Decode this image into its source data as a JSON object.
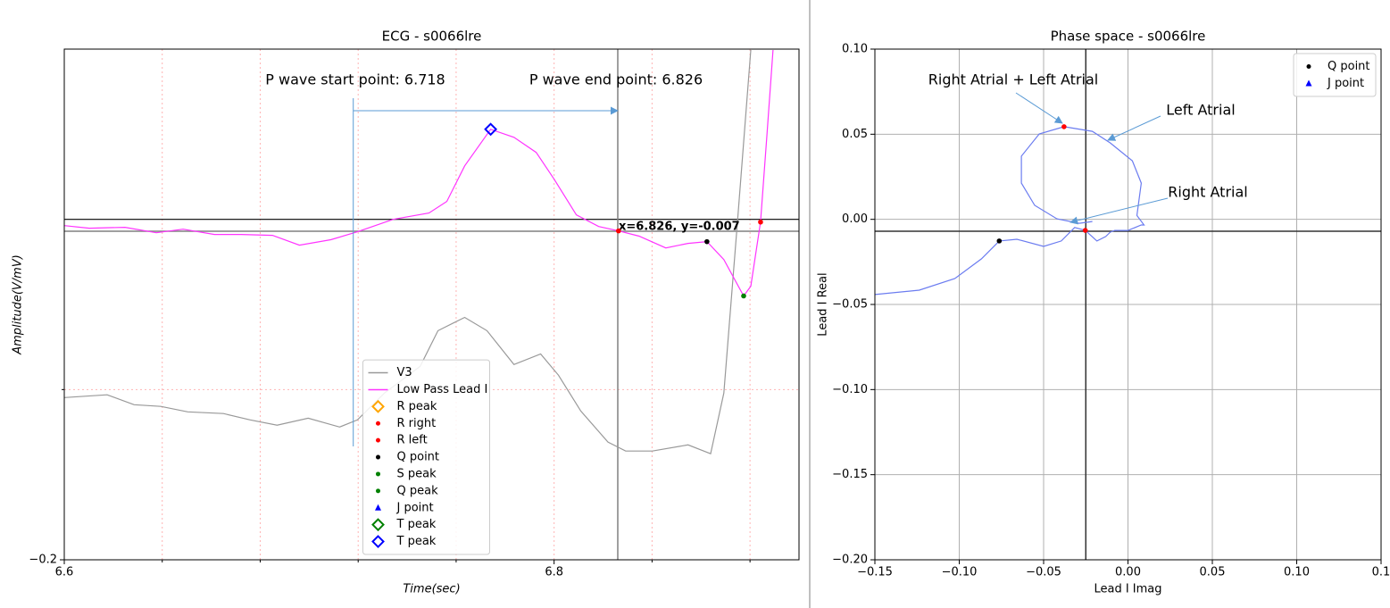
{
  "chart_data": [
    {
      "type": "line",
      "title": "ECG - s0066lre",
      "xlabel": "Time(sec)",
      "ylabel": "Amplitude(V/mV)",
      "xlim": [
        6.6,
        6.9
      ],
      "ylim": [
        -0.2,
        0.1
      ],
      "xticks": [
        6.6,
        6.8
      ],
      "yticks": [
        {
          "value": -0.2,
          "label": "−0.2"
        }
      ],
      "minor_xticks": [
        6.64,
        6.68,
        6.72,
        6.76,
        6.84,
        6.88
      ],
      "minor_yticks": [
        -0.1
      ],
      "grid": true,
      "grid_color": "#ffb3b3",
      "grid_dash": "2,3",
      "hlines": [
        0
      ],
      "crosshair": {
        "x": 6.826,
        "y": -0.007,
        "label": "x=6.826, y=-0.007",
        "color": "#808080"
      },
      "annotations": [
        {
          "text": "P wave start point: 6.718",
          "x": 6.718
        },
        {
          "text": "P wave end point: 6.826",
          "x": 6.826
        }
      ],
      "arrow_color": "#5b9bd5",
      "legend": "lower center",
      "series": [
        {
          "name": "V3",
          "color": "#999999",
          "marker": "line",
          "x": [
            6.6,
            6.6175,
            6.6285,
            6.6394,
            6.6504,
            6.665,
            6.6759,
            6.6869,
            6.6996,
            6.7124,
            6.7197,
            6.7307,
            6.7453,
            6.7526,
            6.7635,
            6.7726,
            6.7836,
            6.7945,
            6.8018,
            6.8109,
            6.822,
            6.8292,
            6.8401,
            6.8547,
            6.8639,
            6.8693,
            6.8748,
            6.8803
          ],
          "values": [
            -0.1047,
            -0.1031,
            -0.1089,
            -0.1099,
            -0.1131,
            -0.1141,
            -0.1178,
            -0.1209,
            -0.1168,
            -0.122,
            -0.1178,
            -0.1021,
            -0.0864,
            -0.0654,
            -0.0576,
            -0.0654,
            -0.0853,
            -0.0791,
            -0.0916,
            -0.1126,
            -0.1309,
            -0.1361,
            -0.1361,
            -0.1325,
            -0.1377,
            -0.1021,
            -0.0026,
            0.0995
          ]
        },
        {
          "name": "Low Pass Lead I",
          "color": "#ff33ff",
          "marker": "line",
          "x": [
            6.6,
            6.6102,
            6.6248,
            6.6376,
            6.6485,
            6.6613,
            6.6723,
            6.685,
            6.696,
            6.7088,
            6.7197,
            6.7343,
            6.7489,
            6.7562,
            6.7635,
            6.7741,
            6.7836,
            6.7927,
            6.8,
            6.8091,
            6.8182,
            6.8263,
            6.8347,
            6.8456,
            6.8547,
            6.8624,
            6.8693,
            6.8774,
            6.8803,
            6.8843,
            6.8869,
            6.8894
          ],
          "values": [
            -0.0037,
            -0.0052,
            -0.0047,
            -0.0079,
            -0.0058,
            -0.0089,
            -0.0089,
            -0.0094,
            -0.0152,
            -0.012,
            -0.0073,
            0,
            0.0037,
            0.0105,
            0.0314,
            0.0529,
            0.0482,
            0.0393,
            0.0236,
            0.0026,
            -0.0042,
            -0.0068,
            -0.0099,
            -0.0168,
            -0.0141,
            -0.0131,
            -0.0236,
            -0.045,
            -0.0393,
            -0.0016,
            0.0497,
            0.0995
          ]
        },
        {
          "name": "R peak",
          "color": "#ffa500",
          "marker": "diamond",
          "x": [],
          "values": []
        },
        {
          "name": "R right",
          "color": "#ff0000",
          "marker": "dot",
          "x": [
            6.8843
          ],
          "values": [
            -0.0016
          ]
        },
        {
          "name": "R left",
          "color": "#ff0000",
          "marker": "dot",
          "x": [
            6.8263
          ],
          "values": [
            -0.0068
          ]
        },
        {
          "name": "Q point",
          "color": "#000000",
          "marker": "dot",
          "x": [
            6.8624
          ],
          "values": [
            -0.0131
          ]
        },
        {
          "name": "S peak",
          "color": "#008000",
          "marker": "dot",
          "x": [
            6.8774
          ],
          "values": [
            -0.045
          ]
        },
        {
          "name": "Q peak",
          "color": "#008000",
          "marker": "dot",
          "x": [],
          "values": []
        },
        {
          "name": "J point",
          "color": "#0000ff",
          "marker": "triangle",
          "x": [],
          "values": []
        },
        {
          "name": "T peak",
          "color": "#008000",
          "marker": "diamond",
          "x": [],
          "values": []
        },
        {
          "name": "T peak",
          "color": "#0000ff",
          "marker": "diamond",
          "x": [
            6.7741
          ],
          "values": [
            0.0529
          ]
        }
      ]
    },
    {
      "type": "line",
      "title": "Phase space - s0066lre",
      "xlabel": "Lead I Imag",
      "ylabel": "Lead I Real",
      "xlim": [
        -0.15,
        0.15
      ],
      "ylim": [
        -0.2,
        0.1
      ],
      "xticks": [
        {
          "value": -0.15,
          "label": "−0.15"
        },
        {
          "value": -0.1,
          "label": "−0.10"
        },
        {
          "value": -0.05,
          "label": "−0.05"
        },
        {
          "value": 0,
          "label": "0.00"
        },
        {
          "value": 0.05,
          "label": "0.05"
        },
        {
          "value": 0.1,
          "label": "0.10"
        },
        {
          "value": 0.15,
          "label": "0.1"
        }
      ],
      "yticks": [
        {
          "value": 0.1,
          "label": "0.10"
        },
        {
          "value": 0.05,
          "label": "0.05"
        },
        {
          "value": 0,
          "label": "0.00"
        },
        {
          "value": -0.05,
          "label": "−0.05"
        },
        {
          "value": -0.1,
          "label": "−0.10"
        },
        {
          "value": -0.15,
          "label": "−0.15"
        },
        {
          "value": -0.2,
          "label": "−0.20"
        }
      ],
      "grid": true,
      "grid_color": "#b0b0b0",
      "crosshair": {
        "x": -0.025,
        "y": -0.007,
        "color": "#333333"
      },
      "annotations": [
        {
          "text": "Right Atrial  + Left Atrial"
        },
        {
          "text": "Left Atrial"
        },
        {
          "text": "Right Atrial"
        }
      ],
      "arrow_color": "#5b9bd5",
      "legend": "upper right",
      "series": [
        {
          "color": "#6b7cf0",
          "marker": "line",
          "x": [
            -0.15,
            -0.1237,
            -0.1026,
            -0.0868,
            -0.0763,
            -0.0658,
            -0.05,
            -0.0395,
            -0.0316,
            -0.0253,
            -0.0184,
            -0.0132,
            -0.0105,
            -0.0079,
            0,
            0.0079,
            0.0095,
            0.0053,
            0.0079,
            0.0026,
            -0.0105,
            -0.0211,
            -0.0379,
            -0.0526,
            -0.0632,
            -0.0632,
            -0.0553,
            -0.0421,
            -0.0289,
            -0.0211
          ],
          "values": [
            -0.0442,
            -0.0416,
            -0.0348,
            -0.0232,
            -0.0127,
            -0.0117,
            -0.0159,
            -0.0127,
            -0.0048,
            -0.0065,
            -0.0127,
            -0.0101,
            -0.0075,
            -0.0065,
            -0.0065,
            -0.0033,
            -0.0033,
            0.0023,
            0.0213,
            0.0344,
            0.0449,
            0.0517,
            0.0544,
            0.0502,
            0.0371,
            0.0213,
            0.0082,
            0.0003,
            -0.0023,
            -0.0013
          ]
        },
        {
          "color": "#ff0000",
          "marker": "dot",
          "x": [
            -0.0379,
            -0.0253
          ],
          "values": [
            0.0544,
            -0.0065
          ]
        },
        {
          "name": "Q point",
          "color": "#000000",
          "marker": "dot",
          "x": [
            -0.0763
          ],
          "values": [
            -0.0127
          ]
        },
        {
          "name": "J point",
          "color": "#0000ff",
          "marker": "triangle",
          "x": [],
          "values": []
        }
      ]
    }
  ]
}
